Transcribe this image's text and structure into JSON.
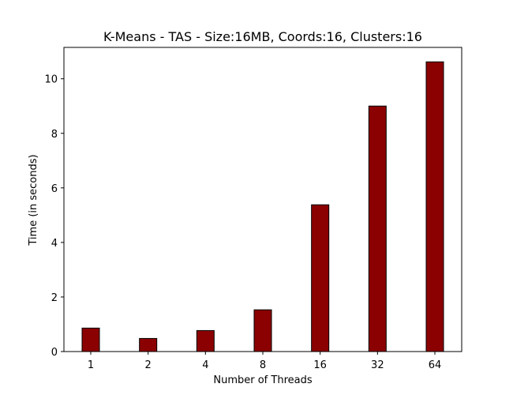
{
  "chart_data": {
    "type": "bar",
    "title": "K-Means - TAS - Size:16MB, Coords:16, Clusters:16",
    "xlabel": "Number of Threads",
    "ylabel": "Time (in seconds)",
    "categories": [
      "1",
      "2",
      "4",
      "8",
      "16",
      "32",
      "64"
    ],
    "values": [
      0.86,
      0.48,
      0.77,
      1.53,
      5.38,
      9.0,
      10.62
    ],
    "ylim": [
      0,
      11.15
    ],
    "yticks": [
      0,
      2,
      4,
      6,
      8,
      10
    ],
    "grid": false,
    "legend": "none",
    "bar_color": "#8b0000",
    "bar_edge_color": "#000000"
  }
}
